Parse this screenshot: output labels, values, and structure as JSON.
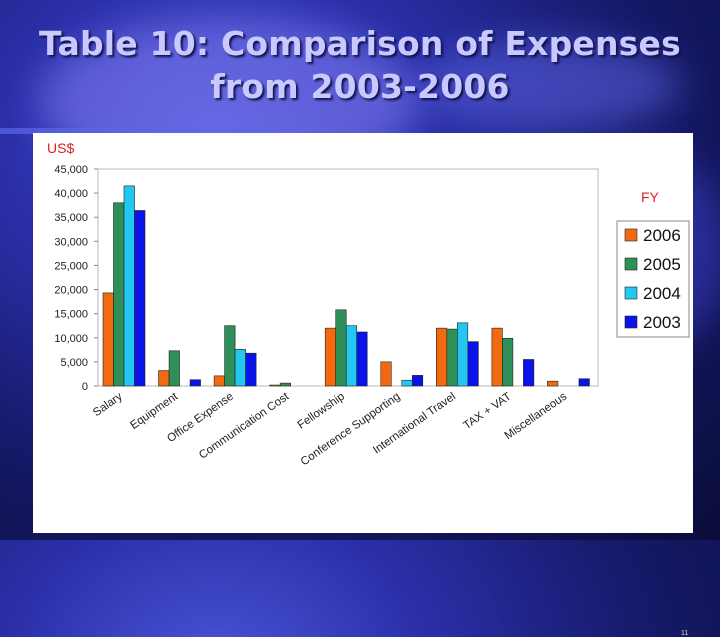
{
  "slide": {
    "title_line1": "Table 10: Comparison of Expenses",
    "title_line2": "from 2003-2006",
    "page_number": "11"
  },
  "chart_data": {
    "type": "bar",
    "ylabel": "US$",
    "legend_title": "FY",
    "legend_position": "right",
    "ylim": [
      0,
      45000
    ],
    "ytick_step": 5000,
    "yticks": [
      "0",
      "5,000",
      "10,000",
      "15,000",
      "20,000",
      "25,000",
      "30,000",
      "35,000",
      "40,000",
      "45,000"
    ],
    "grid": false,
    "categories": [
      "Salary",
      "Equipment",
      "Office Expense",
      "Communication Cost",
      "Fellowship",
      "Conference Supporting",
      "International Travel",
      "TAX + VAT",
      "Miscellaneous"
    ],
    "series": [
      {
        "name": "2006",
        "color": "#f26a10",
        "values": [
          19300,
          3200,
          2100,
          200,
          12000,
          5000,
          12000,
          12000,
          1000
        ]
      },
      {
        "name": "2005",
        "color": "#2f8f58",
        "values": [
          38000,
          7300,
          12500,
          600,
          15800,
          0,
          11800,
          9900,
          0
        ]
      },
      {
        "name": "2004",
        "color": "#22c8f0",
        "values": [
          41500,
          0,
          7600,
          0,
          12500,
          1200,
          13100,
          0,
          0
        ]
      },
      {
        "name": "2003",
        "color": "#0a14e8",
        "values": [
          36400,
          1300,
          6800,
          0,
          11200,
          2200,
          9200,
          5500,
          1500
        ]
      }
    ]
  }
}
